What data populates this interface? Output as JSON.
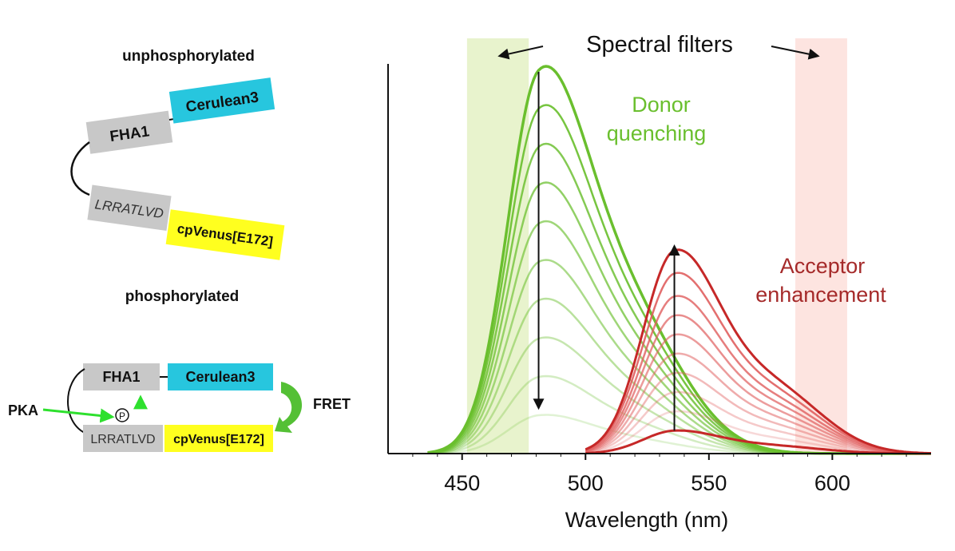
{
  "colors": {
    "donor": "#6abf2e",
    "acceptor": "#c62828",
    "donor_filter": "#e8f3cd",
    "acceptor_filter": "#fde4e0",
    "fha1_box": "#c8c8c8",
    "cerulean_box": "#27c6de",
    "venus_box": "#ffff1f",
    "fret_arrow": "#54c035",
    "pka_arrow": "#2ee02e",
    "text_dark": "#111111",
    "acceptor_label": "#a52a2a",
    "donor_label": "#6abf2e"
  },
  "diagram": {
    "unphosphorylated": {
      "state_label": "unphosphorylated",
      "fha1_label": "FHA1",
      "cerulean_label": "Cerulean3",
      "linker_label": "LRRATLVD",
      "venus_label": "cpVenus[E172]"
    },
    "phosphorylated": {
      "state_label": "phosphorylated",
      "fha1_label": "FHA1",
      "cerulean_label": "Cerulean3",
      "linker_label": "LRRATLVD",
      "venus_label": "cpVenus[E172]",
      "pka_label": "PKA",
      "phospho_label": "P",
      "fret_label": "FRET",
      "pka_arrow_icon": "green-arrow-icon",
      "fret_arrow_icon": "curved-fret-arrow-icon"
    }
  },
  "chart_data": {
    "type": "line",
    "xlabel": "Wavelength (nm)",
    "ylabel": "",
    "xlim": [
      420,
      640
    ],
    "ylim": [
      0,
      1.0
    ],
    "xticks": [
      450,
      500,
      550,
      600
    ],
    "grid": false,
    "annotations": {
      "spectral_filters": "Spectral filters",
      "donor_quenching_line1": "Donor",
      "donor_quenching_line2": "quenching",
      "acceptor_enhancement_line1": "Acceptor",
      "acceptor_enhancement_line2": "enhancement"
    },
    "filters": [
      {
        "name": "donor filter",
        "range": [
          452,
          477
        ],
        "color": "#e8f3cd"
      },
      {
        "name": "acceptor filter",
        "range": [
          585,
          606
        ],
        "color": "#fde4e0"
      }
    ],
    "donor_peak_nm": 481,
    "acceptor_peak_nm": 536,
    "series_note": "Family of emission spectra; donor (cyan, green-colored) peak amplitude decreases while acceptor (red) peak amplitude increases",
    "donor_peak_amplitudes": [
      1.0,
      0.9,
      0.8,
      0.7,
      0.6,
      0.5,
      0.4,
      0.3,
      0.2,
      0.1
    ],
    "acceptor_peak_amplitudes": [
      0.53,
      0.47,
      0.41,
      0.36,
      0.31,
      0.26,
      0.21,
      0.16,
      0.11,
      0.06
    ],
    "series": [
      {
        "name": "step 1",
        "donor_peak": 1.0,
        "acceptor_peak": 0.06
      },
      {
        "name": "step 2",
        "donor_peak": 0.9,
        "acceptor_peak": 0.11
      },
      {
        "name": "step 3",
        "donor_peak": 0.8,
        "acceptor_peak": 0.16
      },
      {
        "name": "step 4",
        "donor_peak": 0.7,
        "acceptor_peak": 0.21
      },
      {
        "name": "step 5",
        "donor_peak": 0.6,
        "acceptor_peak": 0.26
      },
      {
        "name": "step 6",
        "donor_peak": 0.5,
        "acceptor_peak": 0.31
      },
      {
        "name": "step 7",
        "donor_peak": 0.4,
        "acceptor_peak": 0.36
      },
      {
        "name": "step 8",
        "donor_peak": 0.3,
        "acceptor_peak": 0.41
      },
      {
        "name": "step 9",
        "donor_peak": 0.2,
        "acceptor_peak": 0.47
      },
      {
        "name": "step 10",
        "donor_peak": 0.1,
        "acceptor_peak": 0.53
      }
    ]
  }
}
